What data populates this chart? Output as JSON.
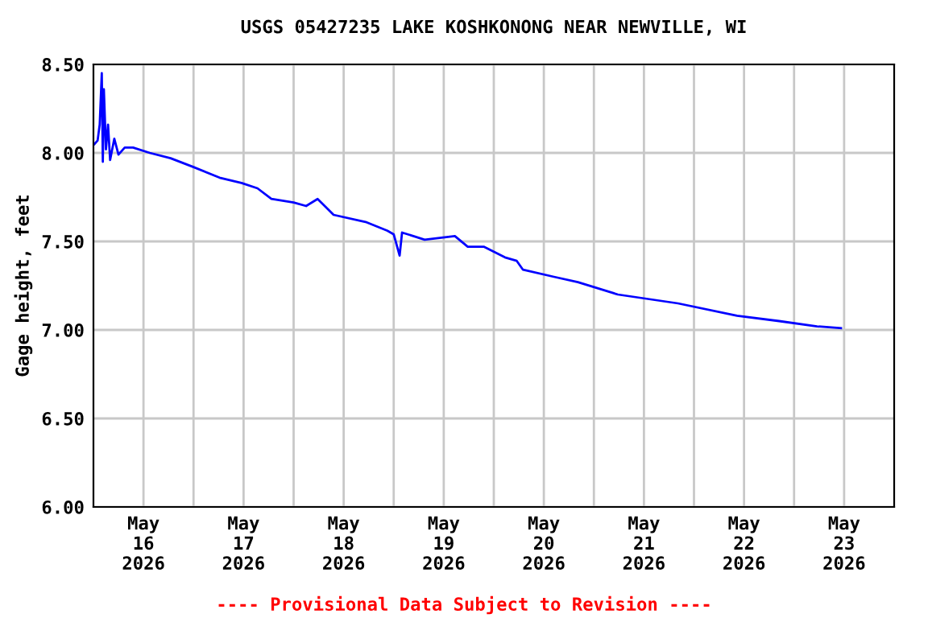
{
  "chart_data": {
    "type": "line",
    "title": "USGS 05427235 LAKE KOSHKONONG NEAR NEWVILLE, WI",
    "ylabel": "Gage height, feet",
    "annotations": [
      "---- Provisional Data Subject to Revision ----"
    ],
    "x": [
      "2026-05-16T00:15",
      "2026-05-16T01:00",
      "2026-05-16T01:30",
      "2026-05-16T02:00",
      "2026-05-16T02:15",
      "2026-05-16T02:30",
      "2026-05-16T03:00",
      "2026-05-16T03:30",
      "2026-05-16T04:00",
      "2026-05-16T05:00",
      "2026-05-16T06:00",
      "2026-05-16T07:30",
      "2026-05-16T09:30",
      "2026-05-16T13:30",
      "2026-05-16T18:30",
      "2026-05-17T00:00",
      "2026-05-17T06:15",
      "2026-05-17T11:30",
      "2026-05-17T15:20",
      "2026-05-17T18:40",
      "2026-05-18T00:00",
      "2026-05-18T03:00",
      "2026-05-18T05:45",
      "2026-05-18T09:35",
      "2026-05-18T17:15",
      "2026-05-18T22:30",
      "2026-05-19T00:00",
      "2026-05-19T01:25",
      "2026-05-19T02:00",
      "2026-05-19T07:25",
      "2026-05-19T14:40",
      "2026-05-19T17:45",
      "2026-05-19T21:35",
      "2026-05-20T02:40",
      "2026-05-20T05:30",
      "2026-05-20T07:00",
      "2026-05-20T14:25",
      "2026-05-20T20:10",
      "2026-05-21T05:45",
      "2026-05-21T20:10",
      "2026-05-22T10:20",
      "2026-05-22T20:25",
      "2026-05-23T05:30",
      "2026-05-23T11:15"
    ],
    "series": [
      {
        "color": "#0000ff",
        "values": [
          8.05,
          8.07,
          8.16,
          8.45,
          7.95,
          8.36,
          8.02,
          8.16,
          7.96,
          8.08,
          7.99,
          8.03,
          8.03,
          8.0,
          7.97,
          7.92,
          7.86,
          7.83,
          7.8,
          7.74,
          7.72,
          7.7,
          7.74,
          7.65,
          7.61,
          7.56,
          7.54,
          7.42,
          7.55,
          7.51,
          7.53,
          7.47,
          7.47,
          7.41,
          7.39,
          7.34,
          7.3,
          7.27,
          7.2,
          7.15,
          7.08,
          7.05,
          7.02,
          7.01
        ]
      }
    ],
    "xlim": [
      "2026-05-16T00:00",
      "2026-05-24T00:00"
    ],
    "xticks": [
      {
        "value": "2026-05-16T12:00",
        "label": "May\n16\n2026"
      },
      {
        "value": "2026-05-17T00:00",
        "label": null
      },
      {
        "value": "2026-05-17T12:00",
        "label": "May\n17\n2026"
      },
      {
        "value": "2026-05-18T00:00",
        "label": null
      },
      {
        "value": "2026-05-18T12:00",
        "label": "May\n18\n2026"
      },
      {
        "value": "2026-05-19T00:00",
        "label": null
      },
      {
        "value": "2026-05-19T12:00",
        "label": "May\n19\n2026"
      },
      {
        "value": "2026-05-20T00:00",
        "label": null
      },
      {
        "value": "2026-05-20T12:00",
        "label": "May\n20\n2026"
      },
      {
        "value": "2026-05-21T00:00",
        "label": null
      },
      {
        "value": "2026-05-21T12:00",
        "label": "May\n21\n2026"
      },
      {
        "value": "2026-05-22T00:00",
        "label": null
      },
      {
        "value": "2026-05-22T12:00",
        "label": "May\n22\n2026"
      },
      {
        "value": "2026-05-23T00:00",
        "label": null
      },
      {
        "value": "2026-05-23T12:00",
        "label": "May\n23\n2026"
      }
    ],
    "ylim": [
      6.0,
      8.5
    ],
    "yticks": [
      {
        "value": 6.0,
        "label": "6.00"
      },
      {
        "value": 6.5,
        "label": "6.50"
      },
      {
        "value": 7.0,
        "label": "7.00"
      },
      {
        "value": 7.5,
        "label": "7.50"
      },
      {
        "value": 8.0,
        "label": "8.00"
      },
      {
        "value": 8.5,
        "label": "8.50"
      }
    ],
    "grid": true,
    "marker": "none",
    "line_style": "solid",
    "legend": false
  }
}
